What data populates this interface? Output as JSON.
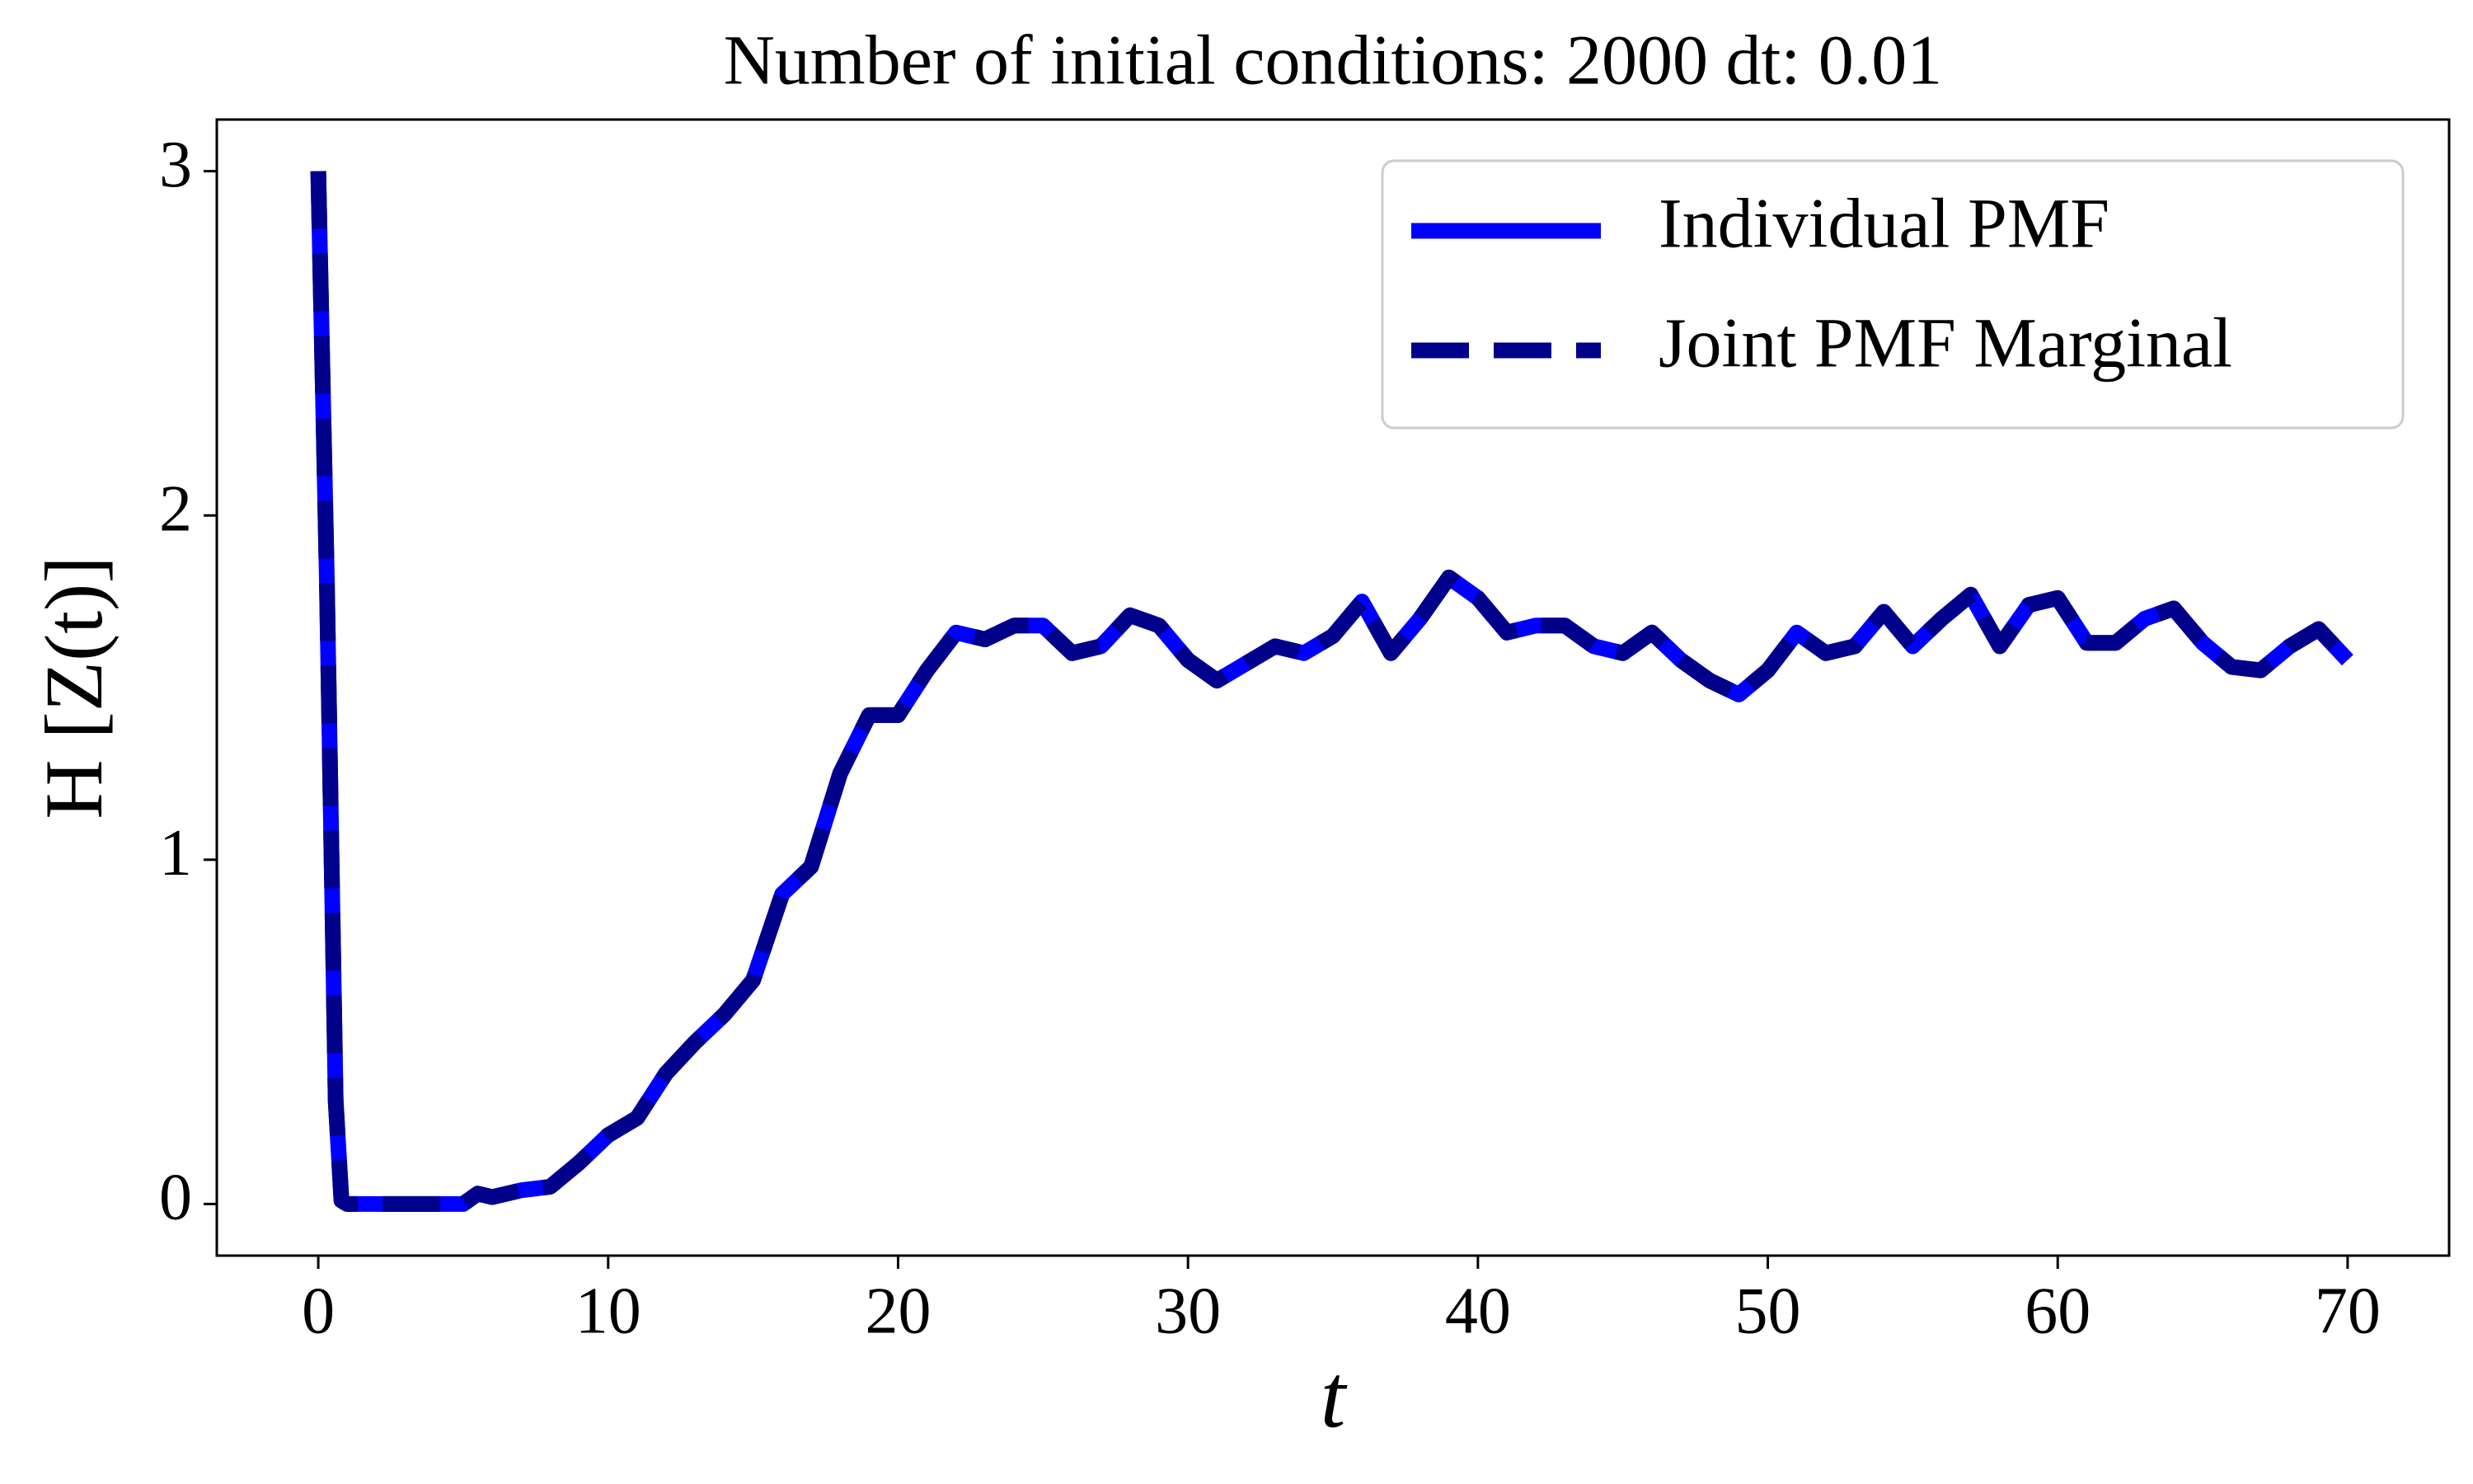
{
  "chart_data": {
    "type": "line",
    "title": "Number of initial conditions: 2000 dt: 0.01",
    "xlabel": "t",
    "ylabel": "H [Z(t)]",
    "x": [
      0,
      0.3,
      0.6,
      0.8,
      1,
      2,
      3,
      4,
      5,
      5.5,
      6,
      7,
      8,
      9,
      10,
      11,
      12,
      13,
      14,
      15,
      16,
      17,
      18,
      19,
      20,
      21,
      22,
      23,
      24,
      25,
      26,
      27,
      28,
      29,
      30,
      31,
      32,
      33,
      34,
      35,
      36,
      37,
      38,
      39,
      40,
      41,
      42,
      43,
      44,
      45,
      46,
      47,
      48,
      49,
      50,
      51,
      52,
      53,
      54,
      55,
      56,
      57,
      58,
      59,
      60,
      61,
      62,
      63,
      64,
      65,
      66,
      67,
      68,
      69,
      70
    ],
    "series": [
      {
        "name": "Individual PMF",
        "color": "#0000ff",
        "dash": "solid",
        "values": [
          3.0,
          1.8,
          0.3,
          0.01,
          0,
          0,
          0,
          0,
          0,
          0.03,
          0.02,
          0.04,
          0.05,
          0.12,
          0.2,
          0.25,
          0.38,
          0.47,
          0.55,
          0.65,
          0.9,
          0.98,
          1.25,
          1.42,
          1.42,
          1.55,
          1.66,
          1.64,
          1.68,
          1.68,
          1.6,
          1.62,
          1.71,
          1.68,
          1.58,
          1.52,
          1.57,
          1.62,
          1.6,
          1.65,
          1.75,
          1.6,
          1.7,
          1.82,
          1.76,
          1.66,
          1.68,
          1.68,
          1.62,
          1.6,
          1.66,
          1.58,
          1.52,
          1.48,
          1.55,
          1.66,
          1.6,
          1.62,
          1.72,
          1.62,
          1.7,
          1.77,
          1.62,
          1.74,
          1.76,
          1.63,
          1.63,
          1.7,
          1.73,
          1.63,
          1.56,
          1.55,
          1.62,
          1.67,
          1.58
        ]
      },
      {
        "name": "Joint PMF Marginal",
        "color": "#00008b",
        "dash": "dashed",
        "values": [
          3.0,
          1.8,
          0.3,
          0.01,
          0,
          0,
          0,
          0,
          0,
          0.03,
          0.02,
          0.04,
          0.05,
          0.12,
          0.2,
          0.25,
          0.38,
          0.47,
          0.55,
          0.65,
          0.9,
          0.98,
          1.25,
          1.42,
          1.42,
          1.55,
          1.66,
          1.64,
          1.68,
          1.68,
          1.6,
          1.62,
          1.71,
          1.68,
          1.58,
          1.52,
          1.57,
          1.62,
          1.6,
          1.65,
          1.75,
          1.6,
          1.7,
          1.82,
          1.76,
          1.66,
          1.68,
          1.68,
          1.62,
          1.6,
          1.66,
          1.58,
          1.52,
          1.48,
          1.55,
          1.66,
          1.6,
          1.62,
          1.72,
          1.62,
          1.7,
          1.77,
          1.62,
          1.74,
          1.76,
          1.63,
          1.63,
          1.7,
          1.73,
          1.63,
          1.56,
          1.55,
          1.62,
          1.67,
          1.58
        ]
      }
    ],
    "xlim": [
      -3.5,
      73.5
    ],
    "xticks": [
      0,
      10,
      20,
      30,
      40,
      50,
      60,
      70
    ],
    "ylim": [
      -0.15,
      3.15
    ],
    "yticks": [
      0,
      1,
      2,
      3
    ],
    "legend": "upper right"
  }
}
